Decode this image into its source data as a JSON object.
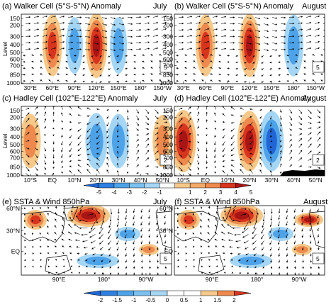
{
  "colors": {
    "deep_blue": "#2166d4",
    "mid_blue": "#4ea3e8",
    "light_blue": "#a6d6f5",
    "orange_light": "#f6c98a",
    "orange_mid": "#ee8a4e",
    "red": "#d8351e",
    "dark_red": "#a71515",
    "frame": "#000000",
    "topography": "#000000"
  },
  "chart_data": [
    {
      "panel": "a",
      "type": "heatmap",
      "title": "(a) Walker Cell (5°S-5°N) Anomaly",
      "month": "July",
      "ylabel": "Level",
      "yticks": [
        "150",
        "200",
        "300",
        "400",
        "500",
        "600",
        "700",
        "850",
        "1000"
      ],
      "xticks": [
        "30°E",
        "60°E",
        "90°E",
        "120°E",
        "150°E",
        "180°",
        "150°W"
      ],
      "reference_vector": "5",
      "features": [
        {
          "label": "60°E",
          "sign": "positive",
          "strength": 0.8
        },
        {
          "label": "120°E",
          "sign": "positive",
          "strength": 1.0
        },
        {
          "label": "90°E",
          "sign": "negative",
          "strength": 0.5
        },
        {
          "label": "150°E",
          "sign": "negative",
          "strength": 0.5
        }
      ]
    },
    {
      "panel": "b",
      "type": "heatmap",
      "title": "(b) Walker Cell (5°S-5°N) Anomaly",
      "month": "August",
      "ylabel": "",
      "yticks": [
        "150",
        "200",
        "300",
        "400",
        "500",
        "600",
        "700",
        "850",
        "1000"
      ],
      "xticks": [
        "30°E",
        "60°E",
        "90°E",
        "120°E",
        "150°E",
        "180°",
        "150°W"
      ],
      "reference_vector": "5",
      "features": [
        {
          "label": "60°E",
          "sign": "positive",
          "strength": 0.8
        },
        {
          "label": "120°E",
          "sign": "positive",
          "strength": 0.9
        },
        {
          "label": "180°",
          "sign": "negative",
          "strength": 0.8
        }
      ]
    },
    {
      "panel": "c",
      "type": "heatmap",
      "title": "(c) Hadley Cell (102°E-122°E) Anomaly",
      "month": "July",
      "ylabel": "Level",
      "yticks": [
        "150",
        "200",
        "300",
        "400",
        "500",
        "600",
        "700",
        "850",
        "1000"
      ],
      "xticks": [
        "10°S",
        "EQ",
        "10°N",
        "20°N",
        "30°N",
        "40°N",
        "50°N"
      ],
      "reference_vector": "2",
      "features": [
        {
          "label": "10°S",
          "sign": "positive",
          "strength": 0.6
        },
        {
          "label": "20°N",
          "sign": "negative",
          "strength": 0.7
        },
        {
          "label": "30°N",
          "sign": "negative",
          "strength": 0.6
        },
        {
          "label": "50°N",
          "sign": "positive",
          "strength": 0.5
        }
      ]
    },
    {
      "panel": "d",
      "type": "heatmap",
      "title": "(d) Hadley Cell (102°E-122°E) Anomaly",
      "month": "August",
      "ylabel": "",
      "yticks": [
        "150",
        "200",
        "300",
        "400",
        "500",
        "600",
        "700",
        "850",
        "1000"
      ],
      "xticks": [
        "10°S",
        "EQ",
        "10°N",
        "20°N",
        "30°N",
        "40°N",
        "50°N"
      ],
      "reference_vector": "2",
      "features": [
        {
          "label": "10°S",
          "sign": "positive",
          "strength": 1.0
        },
        {
          "label": "20°N",
          "sign": "positive",
          "strength": 0.9
        },
        {
          "label": "30°N",
          "sign": "negative",
          "strength": 0.9
        }
      ]
    },
    {
      "panel": "e",
      "type": "heatmap",
      "title": "(e) SSTA & Wind 850hPa",
      "month": "July",
      "yticks": [
        "60°N",
        "30°N",
        "EQ"
      ],
      "xticks": [
        "90°E",
        "180°",
        "90°W"
      ],
      "reference_vector": "5"
    },
    {
      "panel": "f",
      "type": "heatmap",
      "title": "(f) SSTA & Wind 850hPa",
      "month": "August",
      "yticks": [
        "60°N",
        "30°N",
        "EQ"
      ],
      "xticks": [
        "90°E",
        "180°",
        "90°W"
      ],
      "reference_vector": "5"
    },
    {
      "type": "colorbar",
      "name": "top",
      "ticks": [
        "-5",
        "-4",
        "-3",
        "-2",
        "-1",
        "1",
        "2",
        "3",
        "4",
        "5"
      ]
    },
    {
      "type": "colorbar",
      "name": "bottom",
      "ticks": [
        "-2",
        "-1.5",
        "-1",
        "-0.5",
        "0",
        "0.5",
        "1",
        "1.5",
        "2"
      ]
    }
  ]
}
